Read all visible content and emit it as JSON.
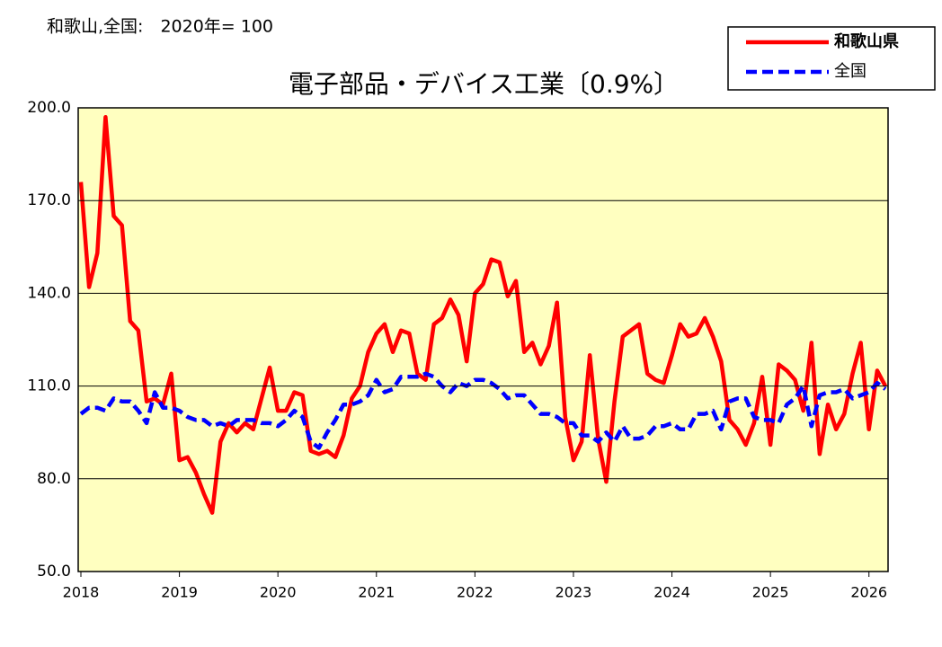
{
  "chart_data": {
    "type": "line",
    "note": "和歌山,全国:　2020年= 100",
    "title": "電子部品・デバイス工業〔0.9%〕",
    "categories": [
      "2018",
      null,
      null,
      null,
      null,
      null,
      null,
      null,
      null,
      null,
      null,
      null,
      "2019",
      null,
      null,
      null,
      null,
      null,
      null,
      null,
      null,
      null,
      null,
      null,
      "2020",
      null,
      null,
      null,
      null,
      null,
      null,
      null,
      null,
      null,
      null,
      null,
      "2021",
      null,
      null,
      null,
      null,
      null,
      null,
      null,
      null,
      null,
      null,
      null,
      "2022",
      null,
      null,
      null,
      null,
      null,
      null,
      null,
      null,
      null,
      null,
      null,
      "2023",
      null,
      null,
      null,
      null,
      null,
      null,
      null,
      null,
      null,
      null,
      null,
      "2024",
      null,
      null,
      null,
      null,
      null,
      null,
      null,
      null,
      null,
      null,
      null,
      "2025",
      null,
      null,
      null,
      null,
      null,
      null,
      null,
      null,
      null,
      null,
      null,
      "2026",
      null,
      null
    ],
    "series": [
      {
        "name": "和歌山県",
        "color": "#ff0000",
        "dash": false,
        "values": [
          176,
          142,
          153,
          197,
          165,
          162,
          131,
          128,
          105,
          106,
          104,
          114,
          86,
          87,
          82,
          75,
          69,
          92,
          98,
          95,
          98,
          96,
          106,
          116,
          102,
          102,
          108,
          107,
          89,
          88,
          89,
          87,
          94,
          106,
          110,
          121,
          127,
          130,
          121,
          128,
          127,
          114,
          112,
          130,
          132,
          138,
          133,
          118,
          140,
          143,
          151,
          150,
          139,
          144,
          121,
          124,
          117,
          123,
          137,
          100,
          86,
          92,
          120,
          93,
          79,
          105,
          126,
          128,
          130,
          114,
          112,
          111,
          120,
          130,
          126,
          127,
          132,
          126,
          118,
          99,
          96,
          91,
          98,
          113,
          91,
          117,
          115,
          112,
          102,
          124,
          88,
          104,
          96,
          101,
          114,
          124,
          96,
          115,
          110
        ]
      },
      {
        "name": "全国",
        "color": "#0000ff",
        "dash": true,
        "values": [
          101,
          103,
          103,
          102,
          106,
          105,
          105,
          102,
          98,
          108,
          103,
          103,
          102,
          100,
          99,
          99,
          97,
          98,
          97,
          99,
          99,
          99,
          98,
          98,
          97,
          99,
          102,
          100,
          92,
          90,
          95,
          99,
          104,
          104,
          105,
          107,
          112,
          108,
          109,
          113,
          113,
          113,
          114,
          113,
          110,
          108,
          111,
          110,
          112,
          112,
          111,
          109,
          106,
          107,
          107,
          104,
          101,
          101,
          100,
          98,
          98,
          94,
          94,
          92,
          95,
          92,
          97,
          93,
          93,
          94,
          97,
          97,
          98,
          96,
          96,
          101,
          101,
          102,
          96,
          105,
          106,
          106,
          100,
          99,
          99,
          98,
          104,
          106,
          110,
          97,
          107,
          108,
          108,
          109,
          106,
          107,
          108,
          111,
          109
        ]
      }
    ],
    "ylim": [
      50,
      200
    ],
    "yticks": [
      {
        "value": 50,
        "label": "50.0"
      },
      {
        "value": 80,
        "label": "80.0"
      },
      {
        "value": 110,
        "label": "110.0"
      },
      {
        "value": 140,
        "label": "140.0"
      },
      {
        "value": 170,
        "label": "170.0"
      },
      {
        "value": 200,
        "label": "200.0"
      }
    ],
    "grid": true,
    "plot_background": "#ffffc0"
  }
}
